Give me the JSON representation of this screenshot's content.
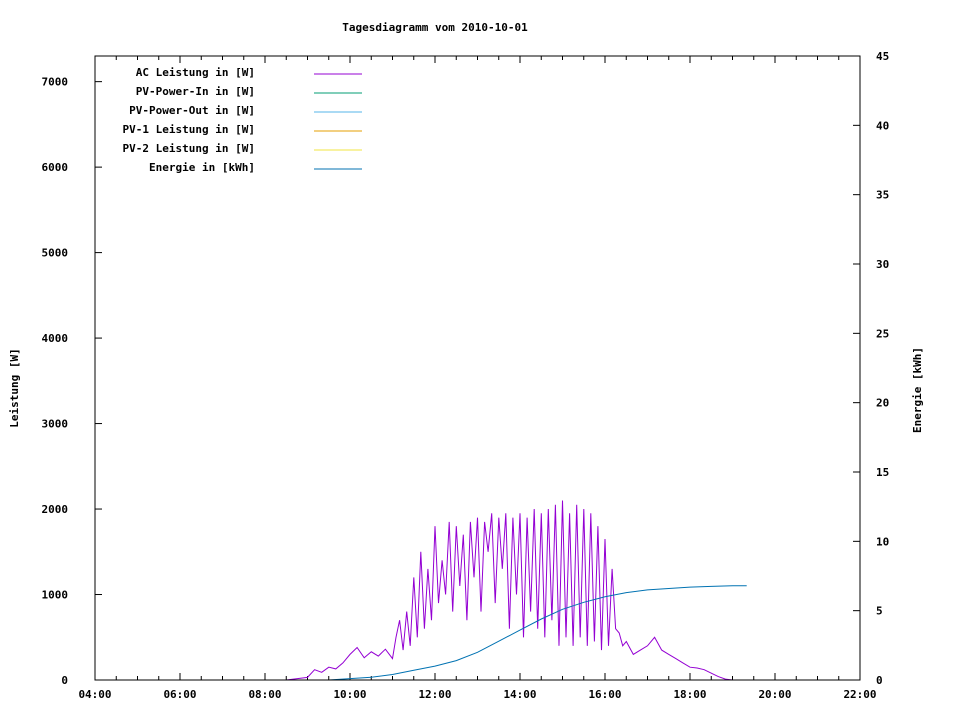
{
  "chart_data": {
    "type": "line",
    "title": "Tagesdiagramm vom 2010-10-01",
    "ylabel": "Leistung [W]",
    "y2label": "Energie [kWh]",
    "xlim": [
      "04:00",
      "22:00"
    ],
    "ylim": [
      0,
      7300
    ],
    "y2lim": [
      0,
      45
    ],
    "xticks": [
      "04:00",
      "06:00",
      "08:00",
      "10:00",
      "12:00",
      "14:00",
      "16:00",
      "18:00",
      "20:00",
      "22:00"
    ],
    "yticks": [
      "0",
      "1000",
      "2000",
      "3000",
      "4000",
      "5000",
      "6000",
      "7000"
    ],
    "y2ticks": [
      "0",
      "5",
      "10",
      "15",
      "20",
      "25",
      "30",
      "35",
      "40",
      "45"
    ],
    "grid": false,
    "legend_position": "top-left",
    "series": [
      {
        "name": "AC Leistung in [W]",
        "color": "#9400d3",
        "axis": "left",
        "x": [
          "08:00",
          "08:30",
          "09:00",
          "09:10",
          "09:20",
          "09:30",
          "09:40",
          "09:50",
          "10:00",
          "10:10",
          "10:20",
          "10:30",
          "10:40",
          "10:50",
          "11:00",
          "11:05",
          "11:10",
          "11:15",
          "11:20",
          "11:25",
          "11:30",
          "11:35",
          "11:40",
          "11:45",
          "11:50",
          "11:55",
          "12:00",
          "12:05",
          "12:10",
          "12:15",
          "12:20",
          "12:25",
          "12:30",
          "12:35",
          "12:40",
          "12:45",
          "12:50",
          "12:55",
          "13:00",
          "13:05",
          "13:10",
          "13:15",
          "13:20",
          "13:25",
          "13:30",
          "13:35",
          "13:40",
          "13:45",
          "13:50",
          "13:55",
          "14:00",
          "14:05",
          "14:10",
          "14:15",
          "14:20",
          "14:25",
          "14:30",
          "14:35",
          "14:40",
          "14:45",
          "14:50",
          "14:55",
          "15:00",
          "15:05",
          "15:10",
          "15:15",
          "15:20",
          "15:25",
          "15:30",
          "15:35",
          "15:40",
          "15:45",
          "15:50",
          "15:55",
          "16:00",
          "16:05",
          "16:10",
          "16:15",
          "16:20",
          "16:25",
          "16:30",
          "16:40",
          "16:50",
          "17:00",
          "17:10",
          "17:20",
          "17:30",
          "17:40",
          "17:50",
          "18:00",
          "18:10",
          "18:20",
          "18:30",
          "18:40",
          "18:50",
          "19:00"
        ],
        "y": [
          0,
          0,
          30,
          120,
          90,
          150,
          130,
          200,
          300,
          380,
          260,
          330,
          280,
          360,
          250,
          500,
          700,
          350,
          800,
          400,
          1200,
          500,
          1500,
          600,
          1300,
          700,
          1800,
          900,
          1400,
          1000,
          1850,
          800,
          1800,
          1100,
          1700,
          700,
          1850,
          1200,
          1900,
          800,
          1850,
          1500,
          1950,
          900,
          1900,
          1300,
          1950,
          600,
          1900,
          1000,
          1950,
          500,
          1900,
          800,
          2000,
          600,
          1950,
          500,
          2000,
          700,
          2050,
          400,
          2100,
          500,
          1950,
          400,
          2050,
          500,
          2000,
          400,
          1950,
          450,
          1800,
          350,
          1650,
          400,
          1300,
          600,
          550,
          400,
          450,
          300,
          350,
          400,
          500,
          350,
          300,
          250,
          200,
          150,
          140,
          120,
          80,
          40,
          10,
          0
        ]
      },
      {
        "name": "PV-Power-In in [W]",
        "color": "#009e73",
        "axis": "left",
        "x": [],
        "y": []
      },
      {
        "name": "PV-Power-Out in [W]",
        "color": "#56b4e9",
        "axis": "left",
        "x": [],
        "y": []
      },
      {
        "name": "PV-1 Leistung in [W]",
        "color": "#e69f00",
        "axis": "left",
        "x": [],
        "y": []
      },
      {
        "name": "PV-2 Leistung in [W]",
        "color": "#f0e442",
        "axis": "left",
        "x": [],
        "y": []
      },
      {
        "name": "Energie in [kWh]",
        "color": "#0072b2",
        "axis": "right",
        "x": [
          "09:30",
          "10:00",
          "10:30",
          "11:00",
          "11:30",
          "12:00",
          "12:30",
          "13:00",
          "13:30",
          "14:00",
          "14:30",
          "15:00",
          "15:30",
          "16:00",
          "16:30",
          "17:00",
          "17:30",
          "18:00",
          "18:30",
          "19:00",
          "19:20"
        ],
        "y": [
          0,
          0.1,
          0.2,
          0.4,
          0.7,
          1.0,
          1.4,
          2.0,
          2.8,
          3.6,
          4.4,
          5.1,
          5.6,
          6.0,
          6.3,
          6.5,
          6.6,
          6.7,
          6.75,
          6.8,
          6.8
        ]
      }
    ]
  }
}
